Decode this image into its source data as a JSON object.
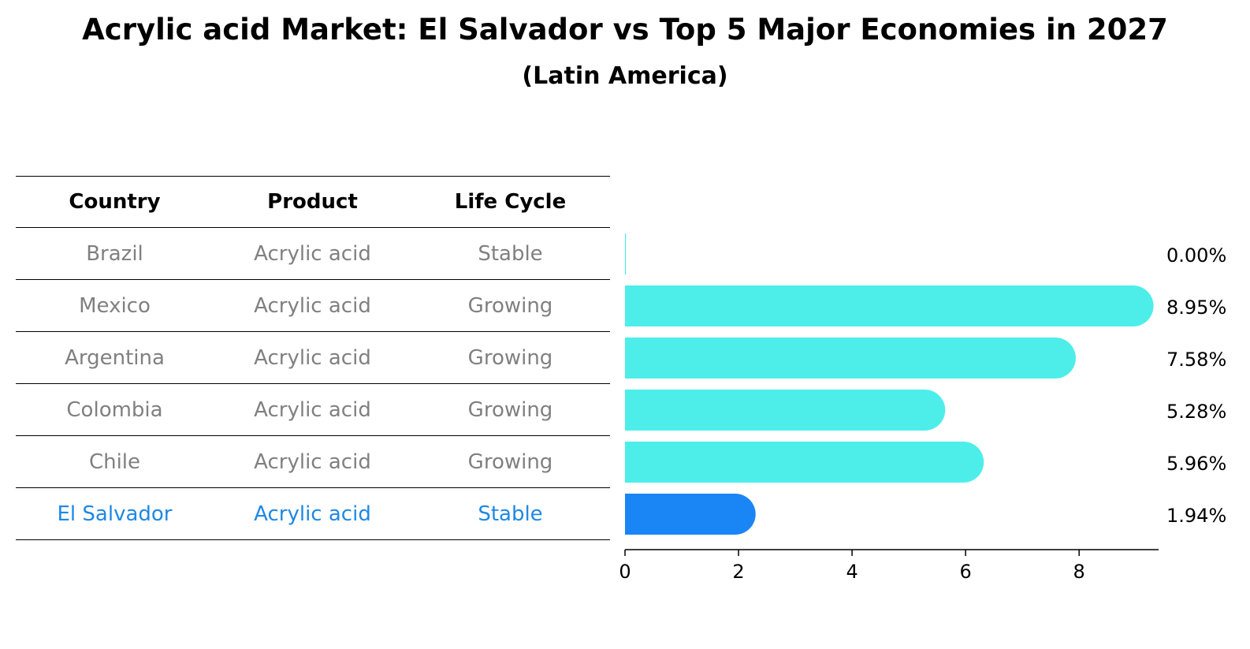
{
  "title": "Acrylic acid Market: El Salvador vs Top 5 Major Economies in 2027",
  "subtitle": "(Latin America)",
  "table": {
    "headers": [
      "Country",
      "Product",
      "Life Cycle"
    ],
    "rows": [
      {
        "country": "Brazil",
        "product": "Acrylic acid",
        "life_cycle": "Stable"
      },
      {
        "country": "Mexico",
        "product": "Acrylic acid",
        "life_cycle": "Growing"
      },
      {
        "country": "Argentina",
        "product": "Acrylic acid",
        "life_cycle": "Growing"
      },
      {
        "country": "Colombia",
        "product": "Acrylic acid",
        "life_cycle": "Growing"
      },
      {
        "country": "Chile",
        "product": "Acrylic acid",
        "life_cycle": "Growing"
      },
      {
        "country": "El Salvador",
        "product": "Acrylic acid",
        "life_cycle": "Stable"
      }
    ]
  },
  "chart_data": {
    "type": "bar",
    "orientation": "horizontal",
    "categories": [
      "Brazil",
      "Mexico",
      "Argentina",
      "Colombia",
      "Chile",
      "El Salvador"
    ],
    "values": [
      0.0,
      8.95,
      7.58,
      5.28,
      5.96,
      1.94
    ],
    "value_labels": [
      "0.00%",
      "8.95%",
      "7.58%",
      "5.28%",
      "5.96%",
      "1.94%"
    ],
    "highlight": "El Salvador",
    "xlim": [
      0,
      9.4
    ],
    "xticks": [
      0,
      2,
      4,
      6,
      8
    ],
    "xtick_labels": [
      "0",
      "2",
      "4",
      "6",
      "8"
    ],
    "colors": {
      "default": "#4deeea",
      "highlight": "#1a85f5"
    }
  }
}
